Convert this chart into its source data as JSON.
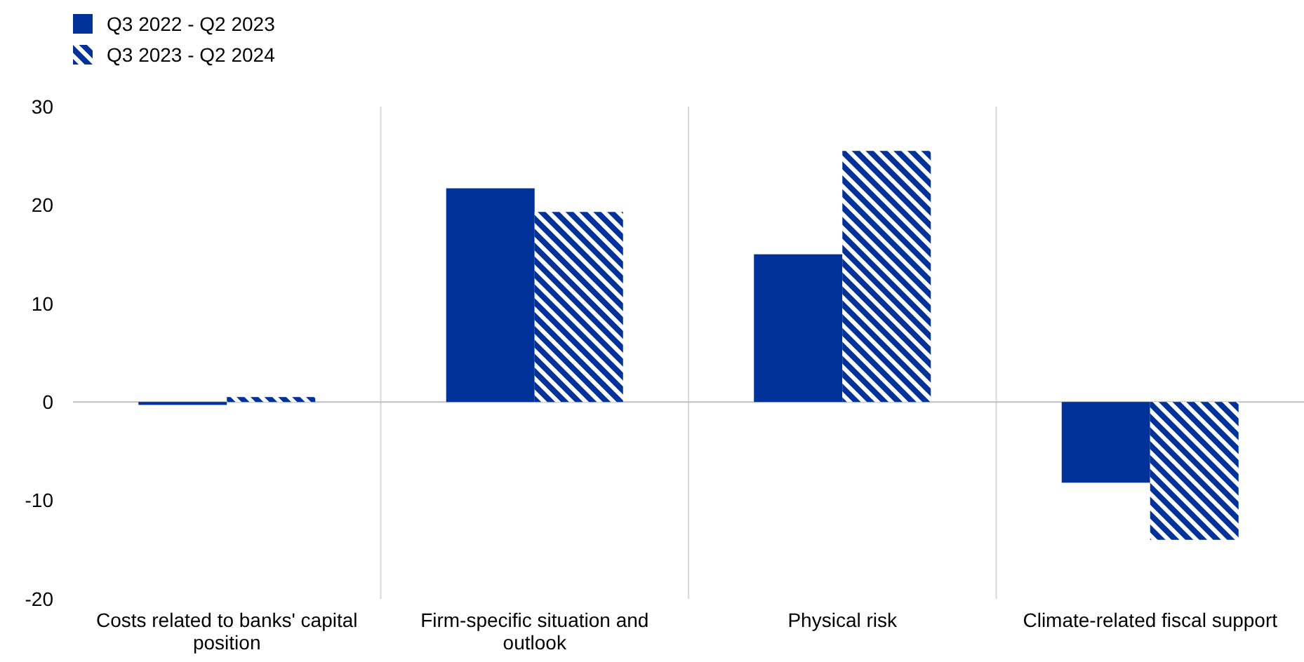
{
  "chart_data": {
    "type": "bar",
    "categories": [
      "Costs related to banks' capital position",
      "Firm-specific situation and outlook",
      "Physical risk",
      "Climate-related fiscal support"
    ],
    "series": [
      {
        "name": "Q3 2022 - Q2 2023",
        "color": "#003299",
        "values": [
          -0.3,
          21.7,
          15.0,
          -8.2
        ]
      },
      {
        "name": "Q3 2023 - Q2 2024",
        "color": "#003299",
        "values": [
          0.5,
          19.3,
          25.5,
          -14.0
        ]
      }
    ],
    "ylim": [
      -20,
      30
    ],
    "yticks": [
      -20,
      -10,
      0,
      10,
      20,
      30
    ],
    "grid": "x",
    "legend": "top left"
  }
}
